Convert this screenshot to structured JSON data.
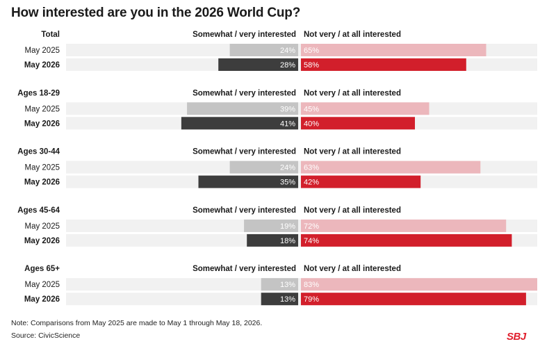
{
  "chart_data": {
    "type": "bar",
    "title": "How interested are you in the 2026 World Cup?",
    "column_labels": [
      "Somewhat / very interested",
      "Not very / at all interested"
    ],
    "row_labels": [
      "May 2025",
      "May 2026"
    ],
    "xlim": [
      0,
      100
    ],
    "groups": [
      {
        "name": "Total",
        "interested": [
          24,
          28
        ],
        "not_interested": [
          65,
          58
        ]
      },
      {
        "name": "Ages 18-29",
        "interested": [
          39,
          41
        ],
        "not_interested": [
          45,
          40
        ]
      },
      {
        "name": "Ages 30-44",
        "interested": [
          24,
          35
        ],
        "not_interested": [
          63,
          42
        ]
      },
      {
        "name": "Ages 45-64",
        "interested": [
          19,
          18
        ],
        "not_interested": [
          72,
          74
        ]
      },
      {
        "name": "Ages 65+",
        "interested": [
          13,
          13
        ],
        "not_interested": [
          83,
          79
        ]
      }
    ],
    "colors": {
      "interested_2025": "#c4c4c4",
      "interested_2026": "#3d3d3d",
      "not_interested_2025": "#ecb7bc",
      "not_interested_2026": "#d21f2b",
      "track": "#f1f1f1"
    }
  },
  "footer": {
    "note": "Note: Comparisons from May 2025 are made to May 1 through May 18, 2026.",
    "source": "Source: CivicScience",
    "logo": "SBJ"
  }
}
